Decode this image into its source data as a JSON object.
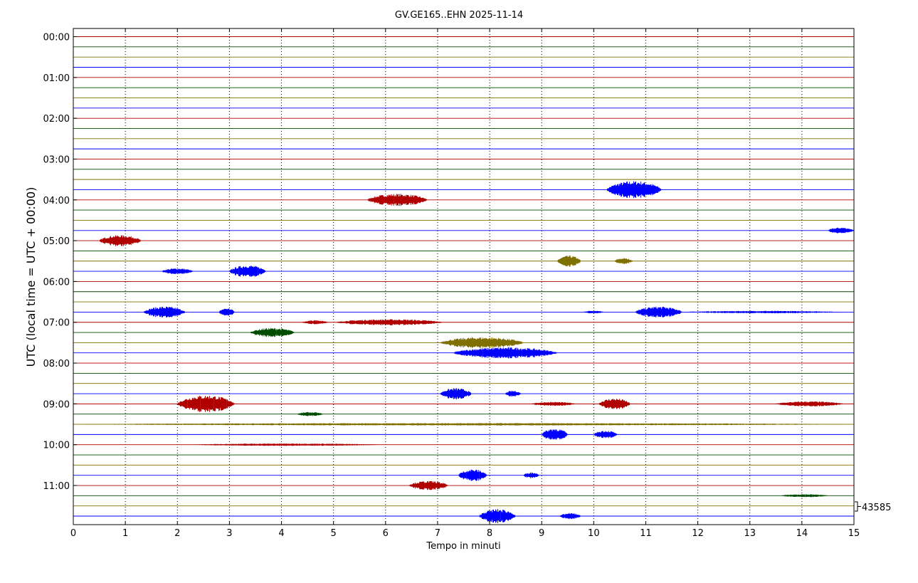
{
  "chart_data": {
    "type": "line",
    "title": "GV.GE165..EHN 2025-11-14",
    "xlabel": "Tempo in minuti",
    "ylabel": "UTC (local time = UTC + 00:00)",
    "xlim": [
      0,
      15
    ],
    "x_ticks": [
      "0",
      "1",
      "2",
      "3",
      "4",
      "5",
      "6",
      "7",
      "8",
      "9",
      "10",
      "11",
      "12",
      "13",
      "14",
      "15"
    ],
    "y_tick_labels": [
      "00:00",
      "01:00",
      "02:00",
      "03:00",
      "04:00",
      "05:00",
      "06:00",
      "07:00",
      "08:00",
      "09:00",
      "10:00",
      "11:00"
    ],
    "trace_interval_minutes": 15,
    "trace_count": 48,
    "scale_label": "43585",
    "grid": "vertical dotted",
    "colors": [
      "#b00000",
      "#004d00",
      "#807000",
      "#0000ff"
    ],
    "events": [
      {
        "trace": "03:45",
        "start": 10.25,
        "end": 11.3,
        "amp": 0.85
      },
      {
        "trace": "04:00",
        "start": 5.65,
        "end": 6.8,
        "amp": 0.6
      },
      {
        "trace": "04:45",
        "start": 14.5,
        "end": 15.0,
        "amp": 0.3
      },
      {
        "trace": "05:00",
        "start": 0.5,
        "end": 1.3,
        "amp": 0.55
      },
      {
        "trace": "05:30",
        "start": 9.3,
        "end": 9.75,
        "amp": 0.55
      },
      {
        "trace": "05:30",
        "start": 10.4,
        "end": 10.75,
        "amp": 0.3
      },
      {
        "trace": "05:45",
        "start": 1.7,
        "end": 2.3,
        "amp": 0.3
      },
      {
        "trace": "05:45",
        "start": 3.0,
        "end": 3.7,
        "amp": 0.6
      },
      {
        "trace": "06:45",
        "start": 1.35,
        "end": 2.15,
        "amp": 0.55
      },
      {
        "trace": "06:45",
        "start": 2.8,
        "end": 3.1,
        "amp": 0.4
      },
      {
        "trace": "06:45",
        "start": 9.8,
        "end": 10.2,
        "amp": 0.15
      },
      {
        "trace": "06:45",
        "start": 10.8,
        "end": 11.7,
        "amp": 0.55
      },
      {
        "trace": "06:45",
        "start": 11.7,
        "end": 14.8,
        "amp": 0.12
      },
      {
        "trace": "07:00",
        "start": 4.4,
        "end": 4.9,
        "amp": 0.2
      },
      {
        "trace": "07:00",
        "start": 5.05,
        "end": 7.1,
        "amp": 0.3
      },
      {
        "trace": "07:15",
        "start": 3.4,
        "end": 4.25,
        "amp": 0.45
      },
      {
        "trace": "07:30",
        "start": 7.05,
        "end": 8.65,
        "amp": 0.55
      },
      {
        "trace": "07:45",
        "start": 7.3,
        "end": 9.3,
        "amp": 0.55
      },
      {
        "trace": "08:45",
        "start": 7.05,
        "end": 7.65,
        "amp": 0.55
      },
      {
        "trace": "08:45",
        "start": 8.3,
        "end": 8.6,
        "amp": 0.3
      },
      {
        "trace": "09:00",
        "start": 2.0,
        "end": 3.1,
        "amp": 0.85
      },
      {
        "trace": "09:00",
        "start": 8.8,
        "end": 9.65,
        "amp": 0.2
      },
      {
        "trace": "09:00",
        "start": 10.1,
        "end": 10.7,
        "amp": 0.55
      },
      {
        "trace": "09:00",
        "start": 13.5,
        "end": 14.8,
        "amp": 0.25
      },
      {
        "trace": "09:15",
        "start": 4.3,
        "end": 4.8,
        "amp": 0.2
      },
      {
        "trace": "09:30",
        "start": 0.0,
        "end": 15.0,
        "amp": 0.12
      },
      {
        "trace": "09:45",
        "start": 9.0,
        "end": 9.5,
        "amp": 0.6
      },
      {
        "trace": "09:45",
        "start": 10.0,
        "end": 10.45,
        "amp": 0.4
      },
      {
        "trace": "10:00",
        "start": 2.3,
        "end": 5.9,
        "amp": 0.12
      },
      {
        "trace": "10:45",
        "start": 7.4,
        "end": 7.95,
        "amp": 0.6
      },
      {
        "trace": "10:45",
        "start": 8.65,
        "end": 8.95,
        "amp": 0.3
      },
      {
        "trace": "11:00",
        "start": 6.45,
        "end": 7.2,
        "amp": 0.45
      },
      {
        "trace": "11:15",
        "start": 13.6,
        "end": 14.5,
        "amp": 0.15
      },
      {
        "trace": "11:45",
        "start": 7.8,
        "end": 8.5,
        "amp": 0.7
      },
      {
        "trace": "11:45",
        "start": 9.35,
        "end": 9.75,
        "amp": 0.3
      }
    ]
  }
}
